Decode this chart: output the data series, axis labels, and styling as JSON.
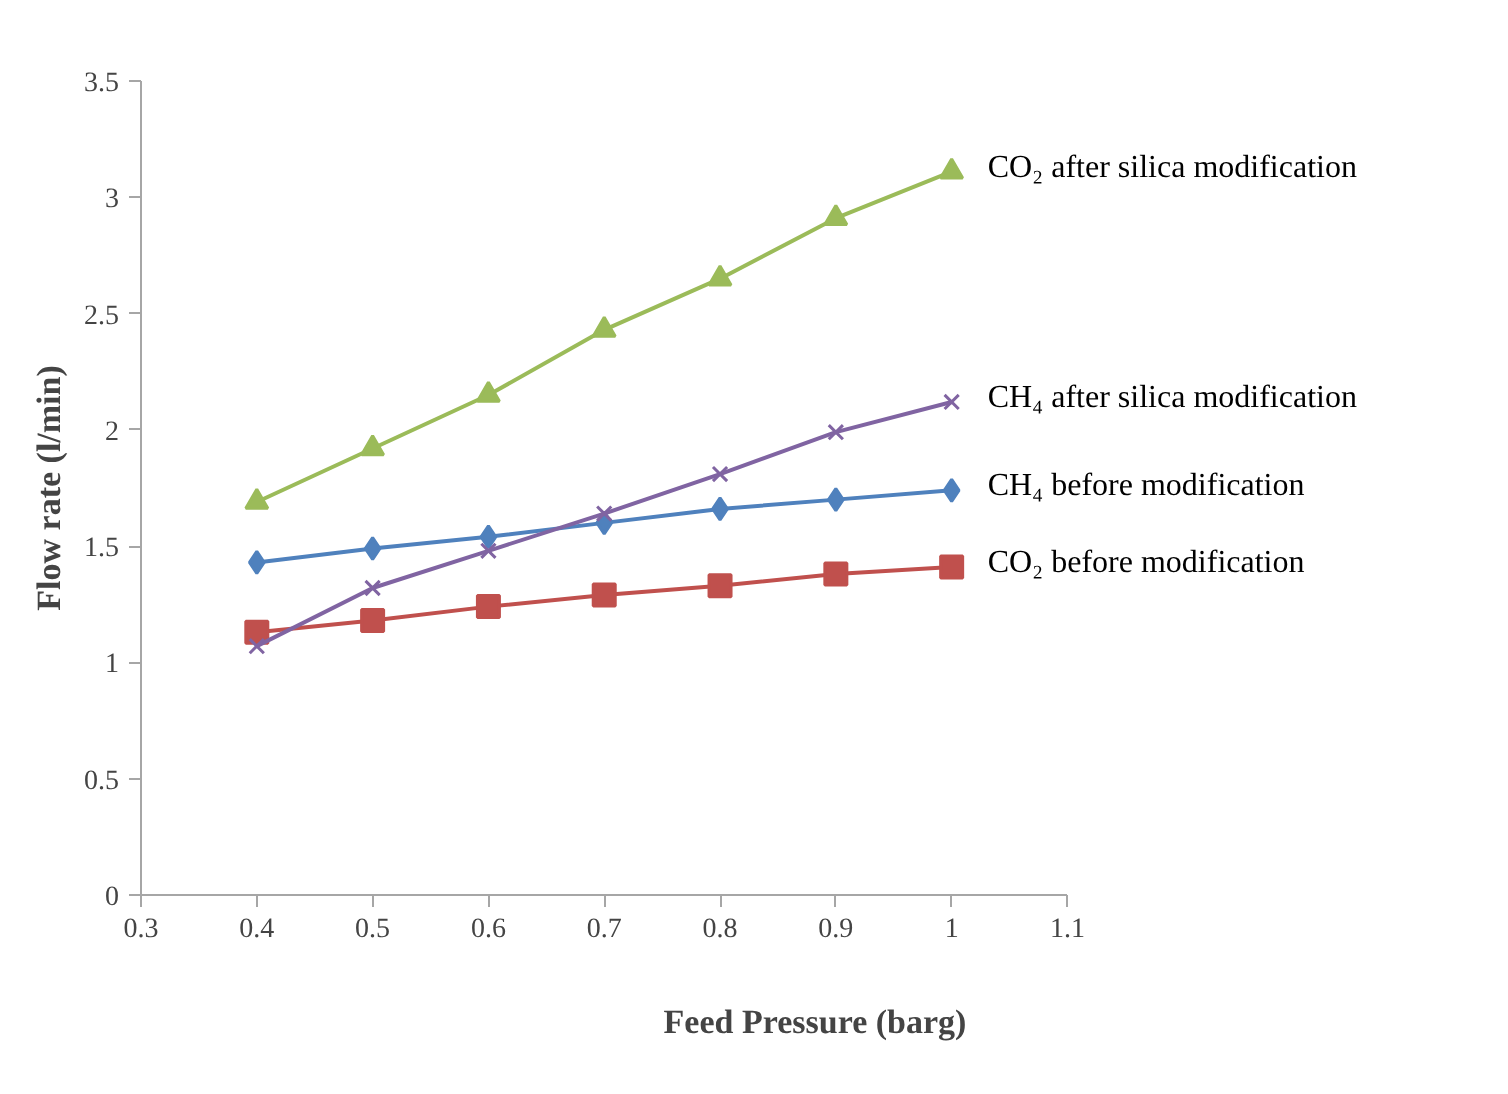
{
  "chart_data": {
    "type": "line",
    "xlabel": "Feed Pressure (barg)",
    "ylabel": "Flow rate (l/min)",
    "x": [
      0.4,
      0.5,
      0.6,
      0.7,
      0.8,
      0.9,
      1.0
    ],
    "series": [
      {
        "name": "CO₂ after silica modification",
        "color": "#9bbb59",
        "marker": "triangle",
        "values": [
          1.69,
          1.92,
          2.15,
          2.43,
          2.65,
          2.91,
          3.11
        ]
      },
      {
        "name": "CH₄ after silica modification",
        "color": "#8064a2",
        "marker": "cross",
        "values": [
          1.07,
          1.32,
          1.48,
          1.64,
          1.81,
          1.99,
          2.12
        ]
      },
      {
        "name": "CH₄ before modification",
        "color": "#4f81bd",
        "marker": "diamond",
        "values": [
          1.43,
          1.49,
          1.54,
          1.6,
          1.66,
          1.7,
          1.74
        ]
      },
      {
        "name": "CO₂ before modification",
        "color": "#c0504d",
        "marker": "square",
        "values": [
          1.13,
          1.18,
          1.24,
          1.29,
          1.33,
          1.38,
          1.41
        ]
      }
    ],
    "xlim": [
      0.3,
      1.1
    ],
    "xticks": [
      0.3,
      0.4,
      0.5,
      0.6,
      0.7,
      0.8,
      0.9,
      1,
      1.1
    ],
    "ylim": [
      0,
      3.5
    ],
    "yticks": [
      0,
      0.5,
      1,
      1.5,
      2,
      2.5,
      3,
      3.5
    ],
    "grid": false,
    "legend": false
  }
}
